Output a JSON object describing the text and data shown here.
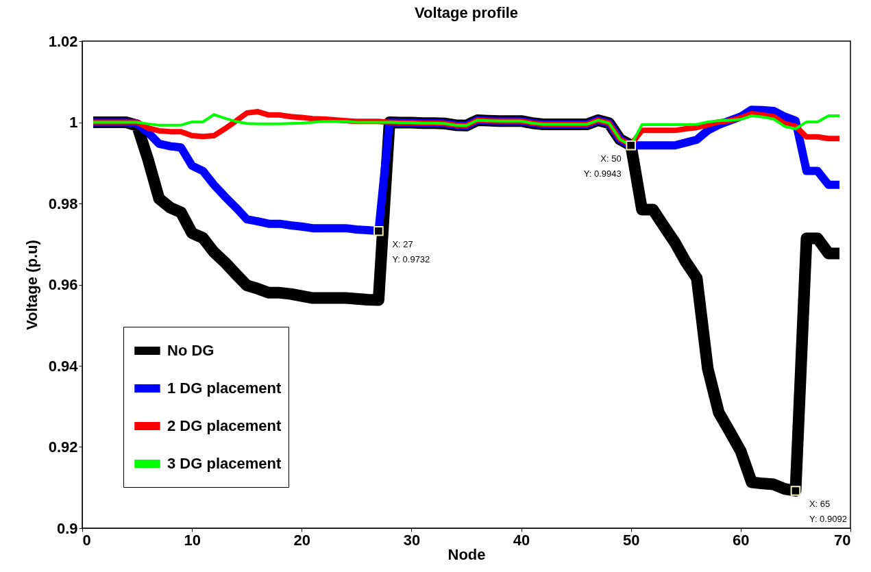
{
  "chart_data": {
    "type": "line",
    "title": "Voltage profile",
    "xlabel": "Node",
    "ylabel": "Voltage (p.u)",
    "x": [
      1,
      2,
      3,
      4,
      5,
      6,
      7,
      8,
      9,
      10,
      11,
      12,
      13,
      14,
      15,
      16,
      17,
      18,
      19,
      20,
      21,
      22,
      23,
      24,
      25,
      26,
      27,
      28,
      29,
      30,
      31,
      32,
      33,
      34,
      35,
      36,
      37,
      38,
      39,
      40,
      41,
      42,
      43,
      44,
      45,
      46,
      47,
      48,
      49,
      50,
      51,
      52,
      53,
      54,
      55,
      56,
      57,
      58,
      59,
      60,
      61,
      62,
      63,
      64,
      65,
      66,
      67,
      68,
      69
    ],
    "series": [
      {
        "name": "No DG",
        "color": "#000000",
        "values": [
          1,
          1,
          1,
          1,
          0.9992,
          0.9908,
          0.9812,
          0.979,
          0.9778,
          0.9727,
          0.9715,
          0.968,
          0.9655,
          0.9626,
          0.9598,
          0.959,
          0.958,
          0.958,
          0.9577,
          0.9572,
          0.9567,
          0.9567,
          0.9567,
          0.9567,
          0.9565,
          0.9563,
          0.9562,
          1,
          0.9999,
          0.9999,
          0.9998,
          0.9998,
          0.9997,
          0.9993,
          0.9992,
          1.0005,
          1.0004,
          1.0003,
          1.0003,
          1.0003,
          0.9998,
          0.9995,
          0.9995,
          0.9995,
          0.9995,
          0.9995,
          1.0005,
          0.9998,
          0.9958,
          0.9943,
          0.9785,
          0.9785,
          0.9744,
          0.9704,
          0.9656,
          0.9616,
          0.9393,
          0.9285,
          0.9238,
          0.919,
          0.9113,
          0.911,
          0.9108,
          0.9097,
          0.9092,
          0.9714,
          0.9714,
          0.9677,
          0.9677
        ]
      },
      {
        "name": "1 DG placement",
        "color": "#0000ff",
        "values": [
          1,
          1,
          1,
          1,
          0.9997,
          0.9975,
          0.9947,
          0.9941,
          0.9938,
          0.9893,
          0.988,
          0.9846,
          0.9817,
          0.979,
          0.9761,
          0.9756,
          0.975,
          0.975,
          0.9746,
          0.9743,
          0.9739,
          0.9739,
          0.9739,
          0.9739,
          0.9736,
          0.9734,
          0.9732,
          1,
          0.9999,
          0.9999,
          0.9998,
          0.9998,
          0.9997,
          0.9993,
          0.9992,
          1.0005,
          1.0004,
          1.0003,
          1.0003,
          1.0003,
          0.9998,
          0.9995,
          0.9995,
          0.9995,
          0.9995,
          0.9995,
          1.0005,
          0.9998,
          0.9958,
          0.9943,
          0.9943,
          0.9943,
          0.9943,
          0.9943,
          0.995,
          0.9957,
          0.998,
          0.9994,
          1.0004,
          1.0014,
          1.0031,
          1.003,
          1.0028,
          1.0014,
          1.0004,
          0.988,
          0.988,
          0.9846,
          0.9846
        ]
      },
      {
        "name": "2 DG placement",
        "color": "#ff0000",
        "values": [
          1,
          1,
          1,
          1,
          1,
          0.9986,
          0.9979,
          0.9977,
          0.9977,
          0.9967,
          0.9965,
          0.9967,
          0.9984,
          1.0003,
          1.0023,
          1.0026,
          1.0018,
          1.0018,
          1.0014,
          1.0012,
          1.0009,
          1.0008,
          1.0006,
          1.0004,
          1.0002,
          1.0002,
          1.0002,
          1,
          0.9999,
          0.9999,
          0.9998,
          0.9998,
          0.9997,
          0.9993,
          0.9992,
          1.0005,
          1.0004,
          1.0003,
          1.0003,
          1.0003,
          0.9998,
          0.9995,
          0.9995,
          0.9995,
          0.9995,
          0.9995,
          1.0005,
          0.9998,
          0.9958,
          0.9945,
          0.998,
          0.998,
          0.998,
          0.998,
          0.9984,
          0.9987,
          0.9994,
          1.0001,
          1.0004,
          1.0011,
          1.0021,
          1.0018,
          1.0014,
          0.9997,
          0.999,
          0.9964,
          0.9964,
          0.996,
          0.996
        ]
      },
      {
        "name": "3 DG placement",
        "color": "#00ff00",
        "values": [
          1,
          1,
          1,
          1,
          1,
          0.9996,
          0.9993,
          0.9993,
          0.9993,
          1.0001,
          1.0001,
          1.0019,
          1.001,
          1.0002,
          0.9997,
          0.9996,
          0.9996,
          0.9996,
          0.9997,
          0.9998,
          1,
          1.0002,
          1.0002,
          1.0002,
          1,
          1,
          1,
          1,
          0.9999,
          0.9999,
          0.9998,
          0.9998,
          0.9997,
          0.9993,
          0.9992,
          1.0005,
          1.0004,
          1.0003,
          1.0003,
          1.0003,
          0.9998,
          0.9995,
          0.9995,
          0.9995,
          0.9995,
          0.9995,
          1.0005,
          0.9998,
          0.9958,
          0.9943,
          0.9994,
          0.9994,
          0.9994,
          0.9994,
          0.9994,
          0.9995,
          1.0001,
          1.0004,
          1.0005,
          1.0007,
          1.0016,
          1.0013,
          1.0008,
          0.999,
          0.9984,
          1.0001,
          1.0001,
          1.0016,
          1.0016
        ]
      }
    ],
    "annotations": [
      {
        "text": "X: 27\nY: 0.9732",
        "x": 27,
        "y": 0.9732
      },
      {
        "text": "X: 50\nY: 0.9943",
        "x": 50,
        "y": 0.9943
      },
      {
        "text": "X: 65\nY: 0.9092",
        "x": 65,
        "y": 0.9092
      }
    ],
    "xlim": [
      0,
      70
    ],
    "ylim": [
      0.9,
      1.02
    ],
    "xticks": [
      0,
      10,
      20,
      30,
      40,
      50,
      60,
      70
    ],
    "yticks": [
      0.9,
      0.92,
      0.94,
      0.96,
      0.98,
      1,
      1.02
    ],
    "grid": false,
    "legend": "bottom left",
    "marker": "none",
    "line_style": "solid"
  }
}
